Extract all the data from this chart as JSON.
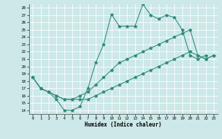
{
  "xlabel": "Humidex (Indice chaleur)",
  "bg_color": "#cce8e8",
  "grid_color": "#ffffff",
  "line_color": "#2e8b7a",
  "xlim": [
    -0.5,
    23.5
  ],
  "ylim": [
    13.5,
    28.5
  ],
  "xticks": [
    0,
    1,
    2,
    3,
    4,
    5,
    6,
    7,
    8,
    9,
    10,
    11,
    12,
    13,
    14,
    15,
    16,
    17,
    18,
    19,
    20,
    21,
    22,
    23
  ],
  "yticks": [
    14,
    15,
    16,
    17,
    18,
    19,
    20,
    21,
    22,
    23,
    24,
    25,
    26,
    27,
    28
  ],
  "line1_x": [
    0,
    1,
    2,
    3,
    4,
    5,
    6,
    7,
    8,
    9,
    10,
    11,
    12,
    13,
    14,
    15,
    16,
    17,
    18,
    19,
    20,
    21,
    22
  ],
  "line1_y": [
    18.5,
    17.0,
    16.5,
    15.5,
    14.0,
    14.0,
    14.5,
    17.0,
    20.5,
    23.0,
    27.1,
    25.5,
    25.5,
    25.5,
    28.5,
    27.0,
    26.5,
    27.0,
    26.7,
    25.0,
    21.5,
    21.0,
    21.5
  ],
  "line2_x": [
    0,
    1,
    2,
    3,
    4,
    5,
    6,
    7,
    8,
    9,
    10,
    11,
    12,
    13,
    14,
    15,
    16,
    17,
    18,
    19,
    20,
    21,
    22,
    23
  ],
  "line2_y": [
    18.5,
    17.0,
    16.5,
    16.0,
    15.5,
    15.5,
    16.0,
    16.5,
    17.5,
    18.5,
    19.5,
    20.5,
    21.0,
    21.5,
    22.0,
    22.5,
    23.0,
    23.5,
    24.0,
    24.5,
    25.0,
    21.5,
    21.0,
    21.5
  ],
  "line3_x": [
    0,
    1,
    2,
    3,
    4,
    5,
    6,
    7,
    8,
    9,
    10,
    11,
    12,
    13,
    14,
    15,
    16,
    17,
    18,
    19,
    20,
    21,
    22,
    23
  ],
  "line3_y": [
    18.5,
    17.0,
    16.5,
    16.0,
    15.5,
    15.5,
    15.5,
    15.5,
    16.0,
    16.5,
    17.0,
    17.5,
    18.0,
    18.5,
    19.0,
    19.5,
    20.0,
    20.5,
    21.0,
    21.5,
    22.0,
    21.5,
    21.0,
    21.5
  ]
}
